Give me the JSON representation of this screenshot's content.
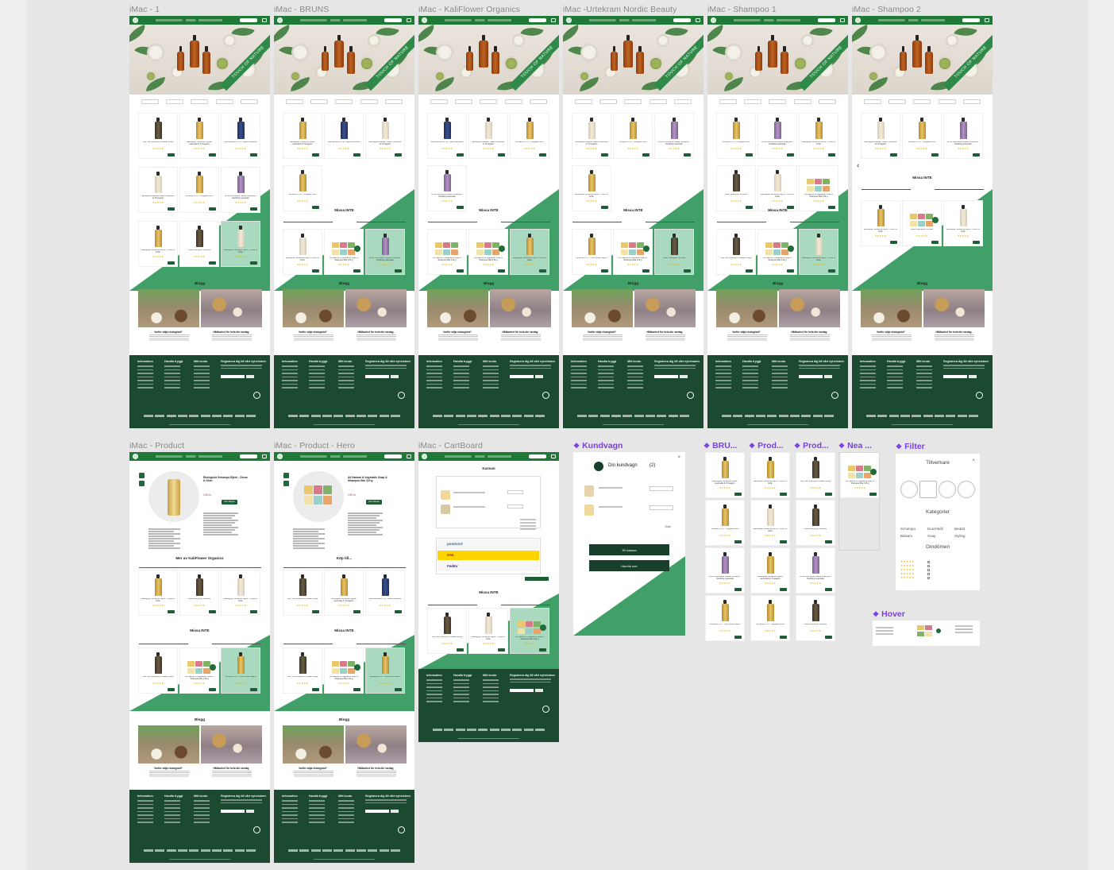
{
  "frames_row1": [
    {
      "title": "iMac - 1"
    },
    {
      "title": "iMac - BRUNS"
    },
    {
      "title": "iMac - KaliFlower Organics"
    },
    {
      "title": "iMac -Urtekram Nordic Beauty"
    },
    {
      "title": "iMac - Shampoo 1"
    },
    {
      "title": "iMac - Shampoo 2"
    }
  ],
  "frames_row2": [
    {
      "title": "iMac - Product"
    },
    {
      "title": "iMac - Product - Hero"
    },
    {
      "title": "iMac - CartBoard"
    }
  ],
  "components": [
    {
      "title": "Kundvagn"
    },
    {
      "title": "BRU..."
    },
    {
      "title": "Prod..."
    },
    {
      "title": "Prod..."
    },
    {
      "title": "Nea ..."
    },
    {
      "title": "Filter"
    },
    {
      "title": "Hover"
    }
  ],
  "site": {
    "hero_ribbon": "TOUCH OF NATURE",
    "missa_inte": "Missa INTE",
    "blogg": "Blogg",
    "blog_posts": [
      {
        "title": "Varför välja ekologiskt?"
      },
      {
        "title": "Hållbarhet för hela din vardag"
      }
    ],
    "footer": {
      "columns": [
        "Information",
        "Handla tryggt",
        "Mitt konto"
      ],
      "newsletter": "Registrera dig till vårt nyhetsbrev"
    },
    "products": [
      "Tea Tree Shampoo Irritated Scalp",
      "Ekologiskt Schampo Mjuke Lavendel & Ylmegerin",
      "Blomöknaluri e Sh - Black Moisture",
      "Ekologiskt Balsam Stalsc Lavendel & Ylmegerin",
      "Schampo m.fr. - Mogade Olivs",
      "Tonvit Volumener Malva Shampoo - Soothing Lavender",
      "Ekologiskt Schampo Björk - Citrus & Grön",
      "Rosé Shampoo Virtuose",
      "Ekologiskt Schampo Björk - Citrus & Grön",
      "All Natural & Vegetable Soap & Shampoo Bar 115 g",
      "Schampo m.fr. - Hormonelt Salem"
    ]
  },
  "product_page": {
    "title_a": "Ekologiskt Schampo Björk - Citrus & Grön",
    "title_b": "All Natural & Vegetable Soap & Shampoo Bar 115 g",
    "price": "139 kr",
    "buy_label": "Köp hänget",
    "more_from": "Mer av KaliFlower Organics",
    "kop_till": "Köp till..."
  },
  "cartboard": {
    "kassan": "Kassan",
    "shipping": [
      "postnord",
      "DHL",
      "FedEx"
    ]
  },
  "kundvagn": {
    "title": "Din kundvagn",
    "count": "(2)",
    "total_label": "Total",
    "btn_primary": "Till kassan",
    "btn_secondary": "Handla mer"
  },
  "filter_panel": {
    "tillverkare": "Tillverkare",
    "kategorier": "Kategorier",
    "categories": [
      "Schampo",
      "Duschtvål",
      "Bedatt",
      "Balsam",
      "Soap",
      "Styling"
    ],
    "omdomen": "Omdömen"
  },
  "colors": {
    "brand_green": "#1f7a38",
    "diag_green": "#41a068",
    "footer_green": "#1b4a30",
    "component_purple": "#7b3fe4"
  }
}
